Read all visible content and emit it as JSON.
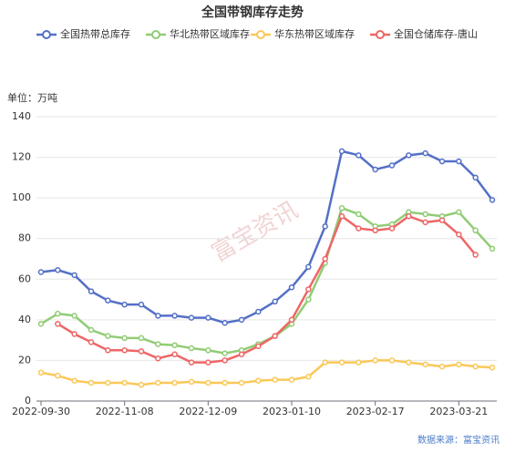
{
  "chart_data": {
    "type": "line",
    "title": "全国带钢库存走势",
    "y_unit": "单位：万吨",
    "source": "数据来源：富宝资讯",
    "watermark": "富宝资讯",
    "categories": [
      "2022-09-30",
      null,
      null,
      null,
      null,
      "2022-11-08",
      null,
      null,
      null,
      null,
      "2022-12-09",
      null,
      null,
      null,
      null,
      "2023-01-10",
      null,
      null,
      null,
      null,
      "2023-02-17",
      null,
      null,
      null,
      null,
      "2023-03-21",
      null,
      null
    ],
    "series": [
      {
        "name": "全国热带总库存",
        "color": "#5470c6",
        "values": [
          63.5,
          64.5,
          62,
          54,
          49.5,
          47.5,
          47.5,
          42,
          42,
          41,
          41,
          38.5,
          40,
          44,
          49,
          56,
          66,
          86,
          123,
          121,
          114,
          116,
          121,
          122,
          118,
          118,
          110,
          99
        ]
      },
      {
        "name": "华北热带区域库存",
        "color": "#91cc75",
        "values": [
          38,
          43,
          42,
          35,
          32,
          31,
          31,
          28,
          27.5,
          26,
          25,
          23.5,
          25,
          28,
          32,
          38,
          50,
          68,
          95,
          92,
          86,
          87,
          93,
          92,
          91,
          93,
          84,
          75
        ]
      },
      {
        "name": "华东热带区域库存",
        "color": "#fac858",
        "values": [
          14,
          12.5,
          10,
          9,
          9,
          9,
          8,
          9,
          9,
          9.5,
          9,
          9,
          9,
          10,
          10.5,
          10.5,
          12,
          19,
          19,
          19,
          20,
          20,
          19,
          18,
          17,
          18,
          17,
          16.5
        ]
      },
      {
        "name": "全国仓储库存-唐山",
        "color": "#ee6666",
        "values": [
          null,
          38,
          33,
          29,
          25,
          25,
          24.5,
          21,
          23,
          19,
          19,
          20,
          23,
          27,
          32,
          40,
          55,
          70,
          91,
          85,
          84,
          85,
          91,
          88,
          89,
          82,
          72,
          null
        ]
      }
    ],
    "ylim": [
      0,
      140
    ],
    "yticks": [
      0,
      20,
      40,
      60,
      80,
      100,
      120,
      140
    ],
    "grid": true
  }
}
